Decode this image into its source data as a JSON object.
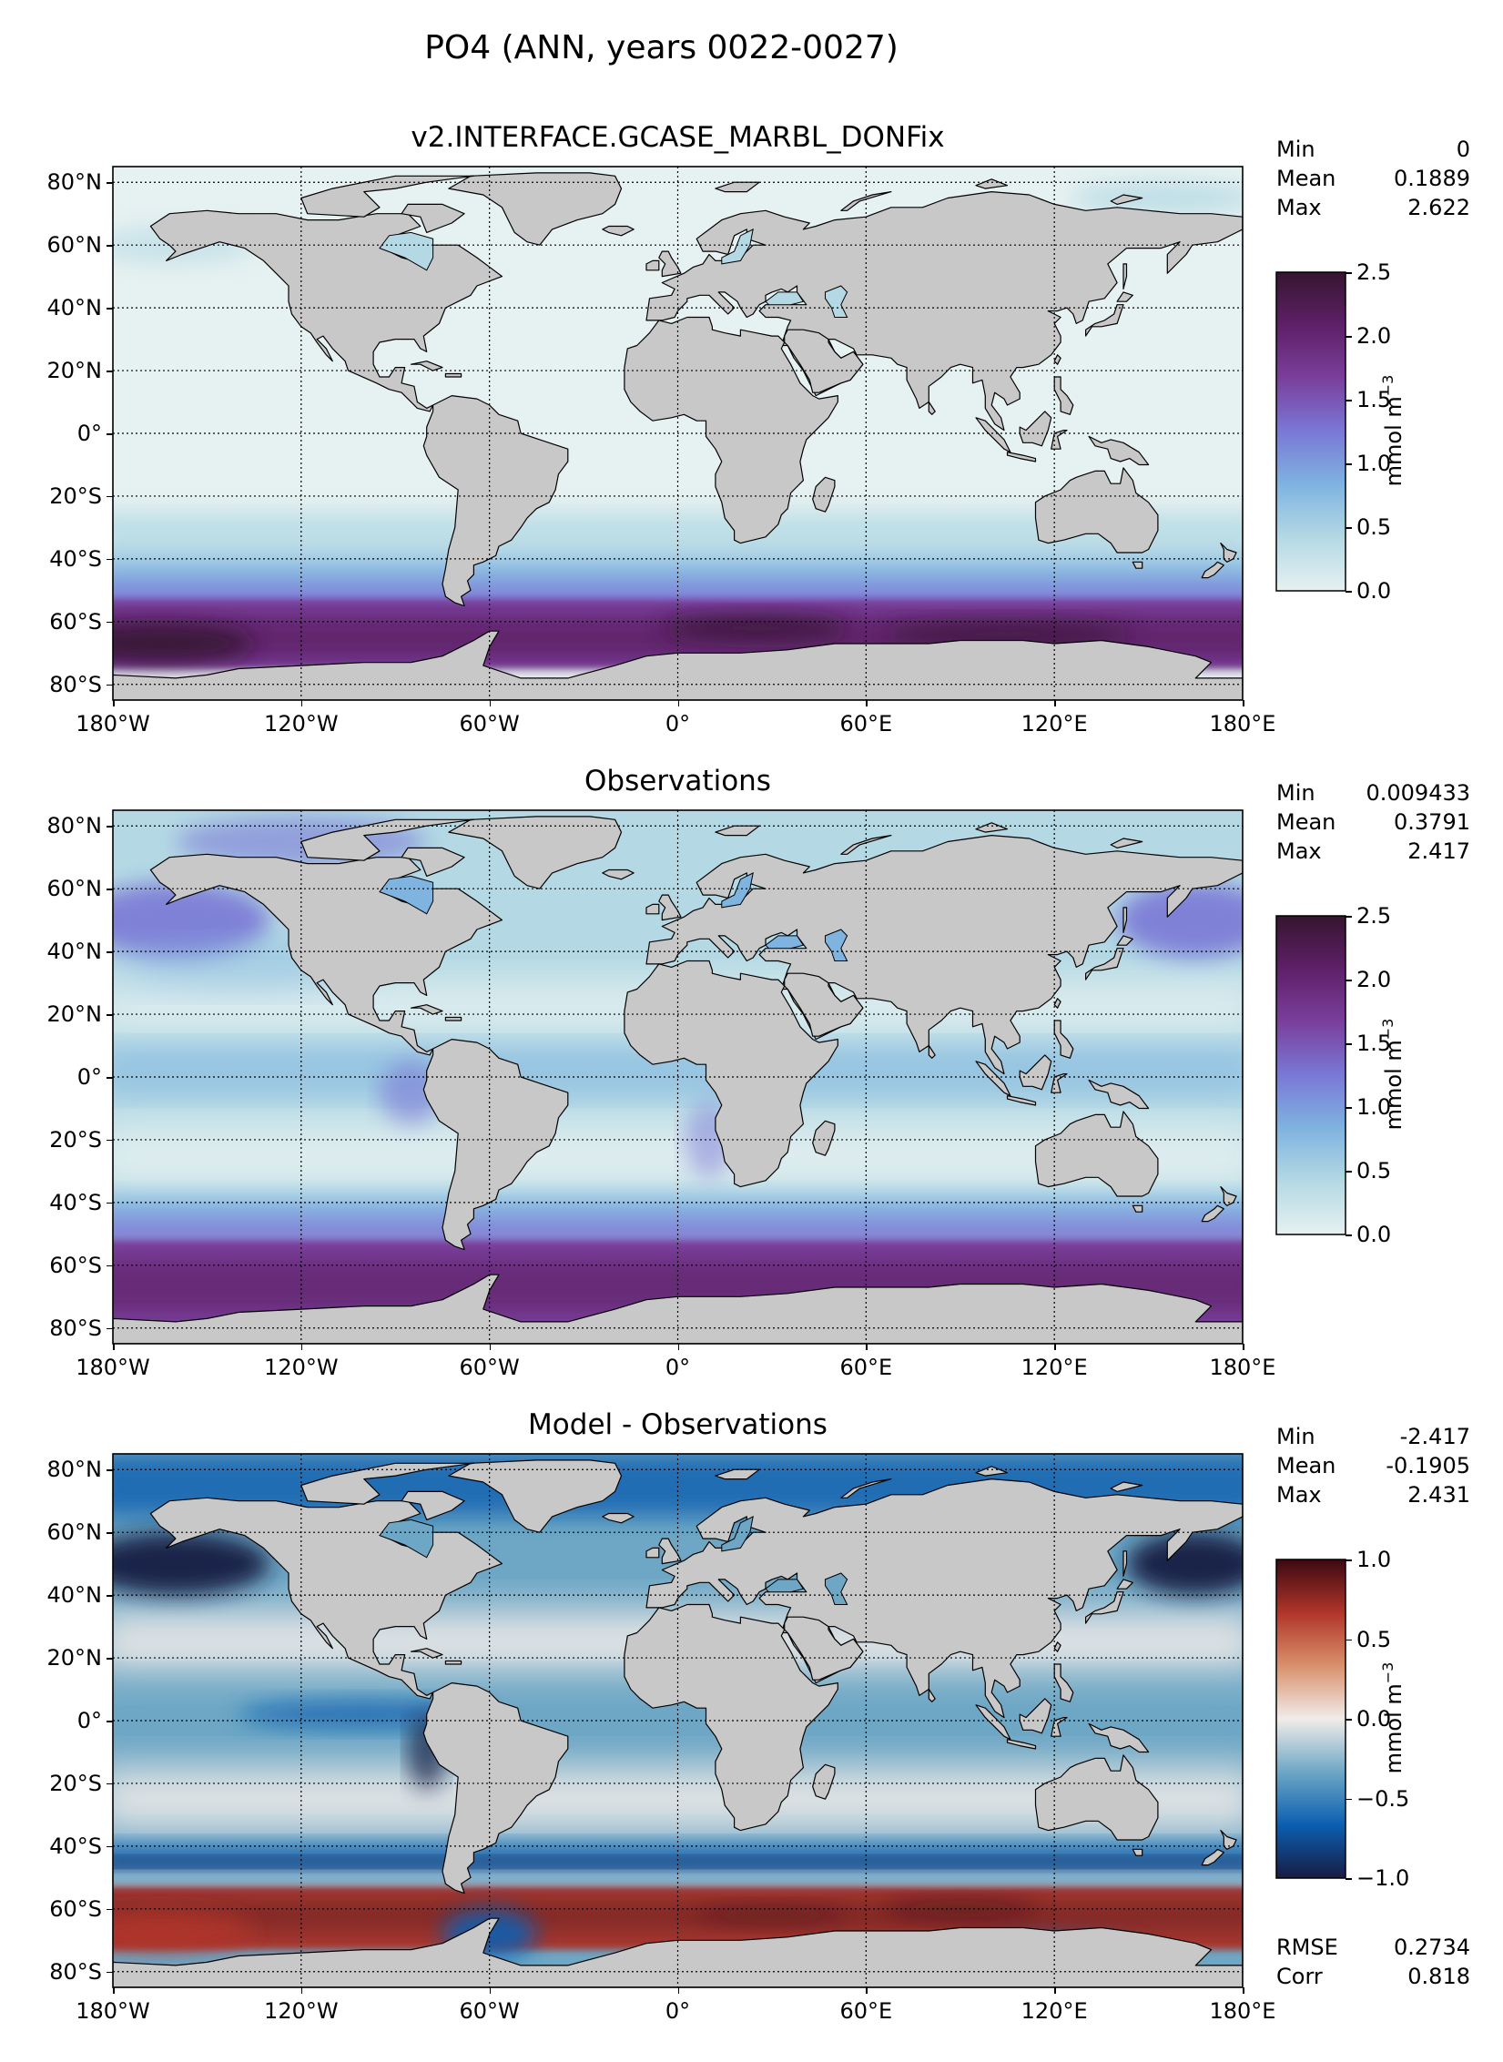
{
  "figure": {
    "title": "PO4 (ANN, years 0022-0027)"
  },
  "lon_ticks": [
    "180°W",
    "120°W",
    "60°W",
    "0°",
    "60°E",
    "120°E",
    "180°E"
  ],
  "lat_ticks": [
    "80°N",
    "60°N",
    "40°N",
    "20°N",
    "0°",
    "20°S",
    "40°S",
    "60°S",
    "80°S"
  ],
  "units": "mmol m",
  "units_exp": "−3",
  "panels": [
    {
      "title": "v2.INTERFACE.GCASE_MARBL_DONFix",
      "stats": {
        "min_label": "Min",
        "min": "0",
        "mean_label": "Mean",
        "mean": "0.1889",
        "max_label": "Max",
        "max": "2.622"
      },
      "colorbar": {
        "ticks": [
          "2.5",
          "2.0",
          "1.5",
          "1.0",
          "0.5",
          "0.0"
        ],
        "range": [
          0,
          2.5
        ],
        "colormap": "dense"
      }
    },
    {
      "title": "Observations",
      "stats": {
        "min_label": "Min",
        "min": "0.009433",
        "mean_label": "Mean",
        "mean": "0.3791",
        "max_label": "Max",
        "max": "2.417"
      },
      "colorbar": {
        "ticks": [
          "2.5",
          "2.0",
          "1.5",
          "1.0",
          "0.5",
          "0.0"
        ],
        "range": [
          0,
          2.5
        ],
        "colormap": "dense"
      }
    },
    {
      "title": "Model - Observations",
      "stats": {
        "min_label": "Min",
        "min": "-2.417",
        "mean_label": "Mean",
        "mean": "-0.1905",
        "max_label": "Max",
        "max": "2.431"
      },
      "colorbar": {
        "ticks": [
          "1.0",
          "0.5",
          "0.0",
          "−0.5",
          "−1.0"
        ],
        "range": [
          -1,
          1
        ],
        "colormap": "balance"
      },
      "metrics": {
        "rmse_label": "RMSE",
        "rmse": "0.2734",
        "corr_label": "Corr",
        "corr": "0.818"
      }
    }
  ],
  "colors": {
    "land": "#c8c8c8",
    "dense": [
      "#e6f1f1",
      "#b4d9e4",
      "#7fb3e0",
      "#7a78d6",
      "#7a3f9c",
      "#5e2068",
      "#361530"
    ],
    "balance": [
      "#181c43",
      "#0b5fb0",
      "#6ea7c5",
      "#f1ece9",
      "#d9906c",
      "#b0352a",
      "#3c0912"
    ]
  }
}
